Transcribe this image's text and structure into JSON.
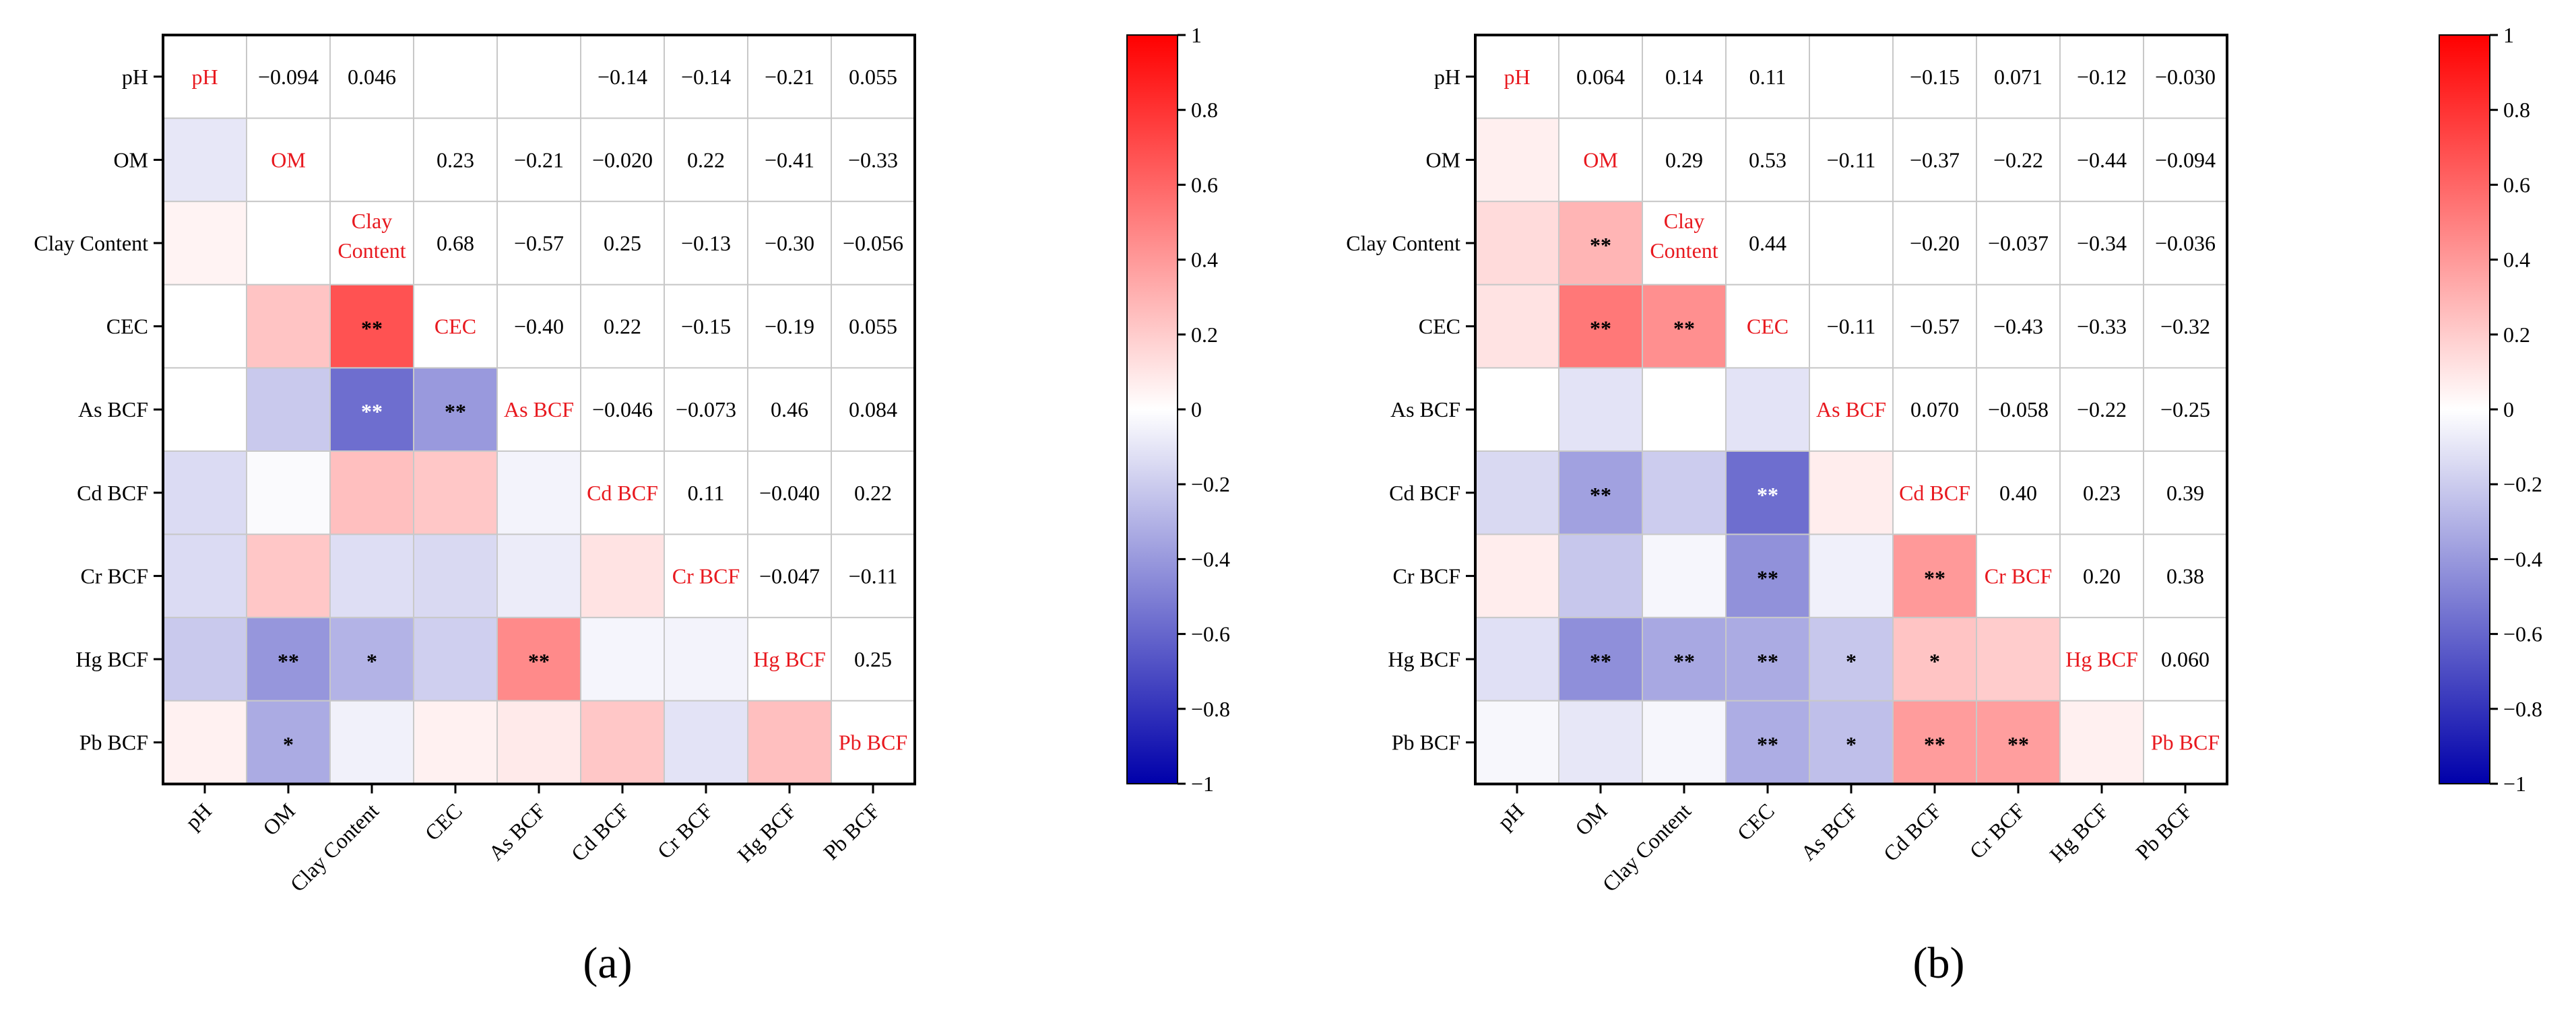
{
  "chart_data": [
    {
      "type": "heatmap",
      "panel_label": "(a)",
      "variables": [
        "pH",
        "OM",
        "Clay Content",
        "CEC",
        "As BCF",
        "Cd BCF",
        "Cr BCF",
        "Hg BCF",
        "Pb BCF"
      ],
      "diagonal_labels": [
        "pH",
        "OM",
        "Clay\nContent",
        "CEC",
        "As BCF",
        "Cd BCF",
        "Cr BCF",
        "Hg BCF",
        "Pb BCF"
      ],
      "upper": [
        [
          null,
          "−0.094",
          "0.046",
          null,
          null,
          "−0.14",
          "−0.14",
          "−0.21",
          "0.055"
        ],
        [
          null,
          null,
          null,
          "0.23",
          "−0.21",
          "−0.020",
          "0.22",
          "−0.41",
          "−0.33"
        ],
        [
          null,
          null,
          null,
          "0.68",
          "−0.57",
          "0.25",
          "−0.13",
          "−0.30",
          "−0.056"
        ],
        [
          null,
          null,
          null,
          null,
          "−0.40",
          "0.22",
          "−0.15",
          "−0.19",
          "0.055"
        ],
        [
          null,
          null,
          null,
          null,
          null,
          "−0.046",
          "−0.073",
          "0.46",
          "0.084"
        ],
        [
          null,
          null,
          null,
          null,
          null,
          null,
          "0.11",
          "−0.040",
          "0.22"
        ],
        [
          null,
          null,
          null,
          null,
          null,
          null,
          null,
          "−0.047",
          "−0.11"
        ],
        [
          null,
          null,
          null,
          null,
          null,
          null,
          null,
          null,
          "0.25"
        ],
        [
          null,
          null,
          null,
          null,
          null,
          null,
          null,
          null,
          null
        ]
      ],
      "lower_values": [
        [
          null,
          null,
          null,
          null,
          null,
          null,
          null,
          null,
          null
        ],
        [
          -0.094,
          null,
          null,
          null,
          null,
          null,
          null,
          null,
          null
        ],
        [
          0.046,
          0,
          null,
          null,
          null,
          null,
          null,
          null,
          null
        ],
        [
          0,
          0.23,
          0.68,
          null,
          null,
          null,
          null,
          null,
          null
        ],
        [
          0,
          -0.21,
          -0.57,
          -0.4,
          null,
          null,
          null,
          null,
          null
        ],
        [
          -0.14,
          -0.02,
          0.25,
          0.22,
          -0.046,
          null,
          null,
          null,
          null
        ],
        [
          -0.14,
          0.22,
          -0.13,
          -0.15,
          -0.073,
          0.11,
          null,
          null,
          null
        ],
        [
          -0.21,
          -0.41,
          -0.3,
          -0.19,
          0.46,
          -0.04,
          -0.047,
          null,
          null
        ],
        [
          0.055,
          -0.33,
          -0.056,
          0.055,
          0.084,
          0.22,
          -0.11,
          0.25,
          null
        ]
      ],
      "lower_stars": [
        [
          null,
          null,
          null,
          null,
          null,
          null,
          null,
          null,
          null
        ],
        [
          null,
          null,
          null,
          null,
          null,
          null,
          null,
          null,
          null
        ],
        [
          null,
          null,
          null,
          null,
          null,
          null,
          null,
          null,
          null
        ],
        [
          null,
          null,
          "**",
          null,
          null,
          null,
          null,
          null,
          null
        ],
        [
          null,
          null,
          "**",
          "**",
          null,
          null,
          null,
          null,
          null
        ],
        [
          null,
          null,
          null,
          null,
          null,
          null,
          null,
          null,
          null
        ],
        [
          null,
          null,
          null,
          null,
          null,
          null,
          null,
          null,
          null
        ],
        [
          null,
          "**",
          "*",
          null,
          "**",
          null,
          null,
          null,
          null
        ],
        [
          null,
          "*",
          null,
          null,
          null,
          null,
          null,
          null,
          null
        ]
      ],
      "colorbar": {
        "min": -1,
        "max": 1,
        "ticks": [
          "1",
          "0.8",
          "0.6",
          "0.4",
          "0.2",
          "0",
          "−0.2",
          "−0.4",
          "−0.6",
          "−0.8",
          "−1"
        ]
      }
    },
    {
      "type": "heatmap",
      "panel_label": "(b)",
      "variables": [
        "pH",
        "OM",
        "Clay Content",
        "CEC",
        "As BCF",
        "Cd BCF",
        "Cr BCF",
        "Hg BCF",
        "Pb BCF"
      ],
      "diagonal_labels": [
        "pH",
        "OM",
        "Clay\nContent",
        "CEC",
        "As BCF",
        "Cd BCF",
        "Cr BCF",
        "Hg BCF",
        "Pb BCF"
      ],
      "upper": [
        [
          null,
          "0.064",
          "0.14",
          "0.11",
          null,
          "−0.15",
          "0.071",
          "−0.12",
          "−0.030"
        ],
        [
          null,
          null,
          "0.29",
          "0.53",
          "−0.11",
          "−0.37",
          "−0.22",
          "−0.44",
          "−0.094"
        ],
        [
          null,
          null,
          null,
          "0.44",
          null,
          "−0.20",
          "−0.037",
          "−0.34",
          "−0.036"
        ],
        [
          null,
          null,
          null,
          null,
          "−0.11",
          "−0.57",
          "−0.43",
          "−0.33",
          "−0.32"
        ],
        [
          null,
          null,
          null,
          null,
          null,
          "0.070",
          "−0.058",
          "−0.22",
          "−0.25"
        ],
        [
          null,
          null,
          null,
          null,
          null,
          null,
          "0.40",
          "0.23",
          "0.39"
        ],
        [
          null,
          null,
          null,
          null,
          null,
          null,
          null,
          "0.20",
          "0.38"
        ],
        [
          null,
          null,
          null,
          null,
          null,
          null,
          null,
          null,
          "0.060"
        ],
        [
          null,
          null,
          null,
          null,
          null,
          null,
          null,
          null,
          null
        ]
      ],
      "lower_values": [
        [
          null,
          null,
          null,
          null,
          null,
          null,
          null,
          null,
          null
        ],
        [
          0.064,
          null,
          null,
          null,
          null,
          null,
          null,
          null,
          null
        ],
        [
          0.14,
          0.29,
          null,
          null,
          null,
          null,
          null,
          null,
          null
        ],
        [
          0.11,
          0.53,
          0.44,
          null,
          null,
          null,
          null,
          null,
          null
        ],
        [
          0,
          -0.11,
          0,
          -0.11,
          null,
          null,
          null,
          null,
          null
        ],
        [
          -0.15,
          -0.37,
          -0.2,
          -0.57,
          0.07,
          null,
          null,
          null,
          null
        ],
        [
          0.071,
          -0.22,
          -0.037,
          -0.43,
          -0.058,
          0.4,
          null,
          null,
          null
        ],
        [
          -0.12,
          -0.44,
          -0.34,
          -0.33,
          -0.22,
          0.23,
          0.2,
          null,
          null
        ],
        [
          -0.03,
          -0.094,
          -0.036,
          -0.32,
          -0.25,
          0.39,
          0.38,
          0.06,
          null
        ]
      ],
      "lower_stars": [
        [
          null,
          null,
          null,
          null,
          null,
          null,
          null,
          null,
          null
        ],
        [
          null,
          null,
          null,
          null,
          null,
          null,
          null,
          null,
          null
        ],
        [
          null,
          "**",
          null,
          null,
          null,
          null,
          null,
          null,
          null
        ],
        [
          null,
          "**",
          "**",
          null,
          null,
          null,
          null,
          null,
          null
        ],
        [
          null,
          null,
          null,
          null,
          null,
          null,
          null,
          null,
          null
        ],
        [
          null,
          "**",
          null,
          "**",
          null,
          null,
          null,
          null,
          null
        ],
        [
          null,
          null,
          null,
          "**",
          null,
          "**",
          null,
          null,
          null
        ],
        [
          null,
          "**",
          "**",
          "**",
          "*",
          "*",
          null,
          null,
          null
        ],
        [
          null,
          null,
          null,
          "**",
          "*",
          "**",
          "**",
          null,
          null
        ]
      ],
      "colorbar": {
        "min": -1,
        "max": 1,
        "ticks": [
          "1",
          "0.8",
          "0.6",
          "0.4",
          "0.2",
          "0",
          "−0.2",
          "−0.4",
          "−0.6",
          "−0.8",
          "−1"
        ]
      }
    }
  ],
  "colors": {
    "positive": "#ff0000",
    "negative": "#0000aa",
    "neutral": "#ffffff",
    "diagonal_text": "#e8191f",
    "grid": "#c8c8c8",
    "text": "#000000"
  }
}
